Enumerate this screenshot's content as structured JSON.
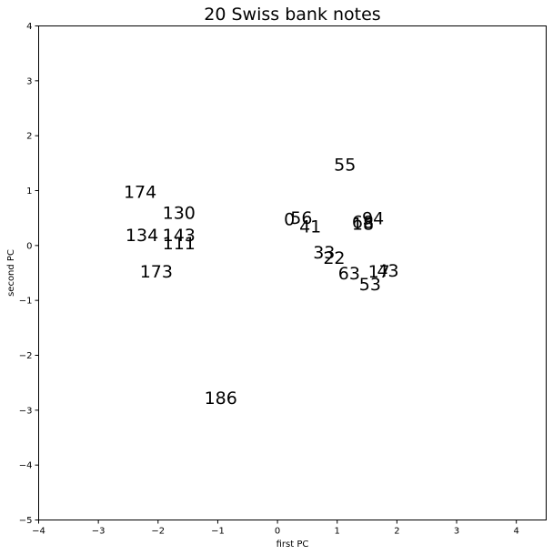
{
  "chart_data": {
    "type": "scatter",
    "title": "20 Swiss bank notes",
    "xlabel": "first PC",
    "ylabel": "second PC",
    "xlim": [
      -4,
      4.5
    ],
    "ylim": [
      -5,
      4
    ],
    "xticks": [
      -4,
      -3,
      -2,
      -1,
      0,
      1,
      2,
      3,
      4
    ],
    "yticks": [
      -5,
      -4,
      -3,
      -2,
      -1,
      0,
      1,
      2,
      3,
      4
    ],
    "grid": false,
    "points": [
      {
        "label": "55",
        "x": 1.13,
        "y": 1.48
      },
      {
        "label": "174",
        "x": -2.3,
        "y": 0.98
      },
      {
        "label": "130",
        "x": -1.65,
        "y": 0.6
      },
      {
        "label": "0",
        "x": 0.2,
        "y": 0.49
      },
      {
        "label": "56",
        "x": 0.4,
        "y": 0.51
      },
      {
        "label": "41",
        "x": 0.55,
        "y": 0.35
      },
      {
        "label": "68",
        "x": 1.43,
        "y": 0.44
      },
      {
        "label": "94",
        "x": 1.6,
        "y": 0.5
      },
      {
        "label": "18",
        "x": 1.43,
        "y": 0.4
      },
      {
        "label": "134",
        "x": -2.27,
        "y": 0.2
      },
      {
        "label": "143",
        "x": -1.65,
        "y": 0.2
      },
      {
        "label": "111",
        "x": -1.65,
        "y": 0.05
      },
      {
        "label": "33",
        "x": 0.78,
        "y": -0.12
      },
      {
        "label": "22",
        "x": 0.95,
        "y": -0.22
      },
      {
        "label": "173",
        "x": -2.03,
        "y": -0.47
      },
      {
        "label": "63",
        "x": 1.2,
        "y": -0.5
      },
      {
        "label": "17",
        "x": 1.7,
        "y": -0.47
      },
      {
        "label": "43",
        "x": 1.85,
        "y": -0.45
      },
      {
        "label": "53",
        "x": 1.55,
        "y": -0.7
      },
      {
        "label": "186",
        "x": -0.95,
        "y": -2.77
      }
    ]
  }
}
